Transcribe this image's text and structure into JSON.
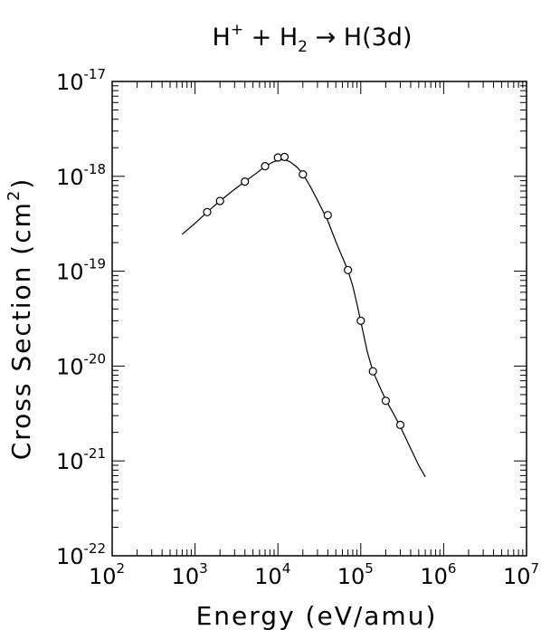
{
  "chart_data": {
    "type": "scatter",
    "title": {
      "pre": "H",
      "sup": "+",
      "mid": " + H",
      "sub": "2",
      "post": " → H(3d)"
    },
    "xlabel": "Energy (eV/amu)",
    "ylabel": {
      "pre": "Cross Section (cm",
      "sup": "2",
      "post": ")"
    },
    "xscale": "log",
    "yscale": "log",
    "xlim": [
      100,
      10000000
    ],
    "ylim": [
      1e-22,
      1e-17
    ],
    "x_ticks": [
      {
        "base": "10",
        "exp": "2",
        "value": 100
      },
      {
        "base": "10",
        "exp": "3",
        "value": 1000
      },
      {
        "base": "10",
        "exp": "4",
        "value": 10000
      },
      {
        "base": "10",
        "exp": "5",
        "value": 100000
      },
      {
        "base": "10",
        "exp": "6",
        "value": 1000000
      },
      {
        "base": "10",
        "exp": "7",
        "value": 10000000
      }
    ],
    "y_ticks": [
      {
        "base": "10",
        "exp": "-22",
        "value": 1e-22
      },
      {
        "base": "10",
        "exp": "-21",
        "value": 1e-21
      },
      {
        "base": "10",
        "exp": "-20",
        "value": 1e-20
      },
      {
        "base": "10",
        "exp": "-19",
        "value": 1e-19
      },
      {
        "base": "10",
        "exp": "-18",
        "value": 1e-18
      },
      {
        "base": "10",
        "exp": "-17",
        "value": 1e-17
      }
    ],
    "grid": false,
    "series": [
      {
        "kind": "points",
        "marker": "open-circle",
        "x": [
          1400,
          2000,
          4000,
          7000,
          10000,
          12000,
          20000,
          40000,
          70000,
          100000,
          140000,
          200000,
          300000
        ],
        "y": [
          4.2e-19,
          5.5e-19,
          8.8e-19,
          1.28e-18,
          1.58e-18,
          1.6e-18,
          1.05e-18,
          3.9e-19,
          1.03e-19,
          3e-20,
          8.8e-21,
          4.3e-21,
          2.4e-21
        ]
      },
      {
        "kind": "line",
        "x": [
          700,
          1000,
          1400,
          2000,
          3000,
          4000,
          5500,
          7000,
          8500,
          10000,
          12000,
          14000,
          17000,
          20000,
          25000,
          30000,
          40000,
          50000,
          60000,
          70000,
          80000,
          90000,
          100000,
          120000,
          140000,
          170000,
          200000,
          250000,
          300000,
          400000,
          500000,
          600000
        ],
        "y": [
          2.45e-19,
          3.2e-19,
          4.2e-19,
          5.5e-19,
          7.3e-19,
          8.8e-19,
          1.08e-18,
          1.27e-18,
          1.4e-18,
          1.48e-18,
          1.5e-18,
          1.42e-18,
          1.25e-18,
          1.06e-18,
          7.6e-19,
          5.6e-19,
          3.4e-19,
          2.05e-19,
          1.4e-19,
          1.02e-19,
          7e-20,
          4.5e-20,
          2.95e-20,
          1.4e-20,
          8.8e-21,
          6e-21,
          4.4e-21,
          3.1e-21,
          2.3e-21,
          1.35e-21,
          9e-22,
          6.8e-22
        ]
      }
    ]
  }
}
